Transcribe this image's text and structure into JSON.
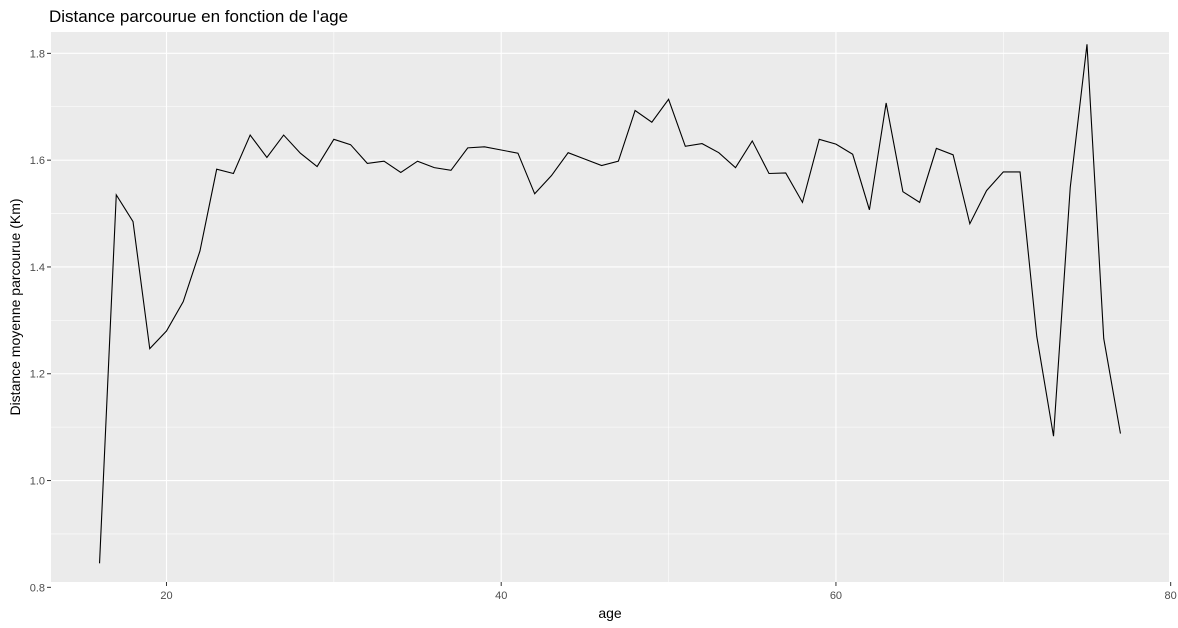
{
  "chart_data": {
    "type": "line",
    "title": "Distance parcourue en fonction de l'age",
    "xlabel": "age",
    "ylabel": "Distance moyenne parcourue (Km)",
    "xlim": [
      13.1,
      79.9
    ],
    "ylim": [
      0.81,
      1.84
    ],
    "x_ticks": [
      20,
      40,
      60,
      80
    ],
    "y_ticks": [
      0.8,
      1.0,
      1.2,
      1.4,
      1.6,
      1.8
    ],
    "x_tick_labels": [
      "20",
      "40",
      "60",
      "80"
    ],
    "y_tick_labels": [
      "0.8",
      "1.0",
      "1.2",
      "1.4",
      "1.6",
      "1.8"
    ],
    "grid": true,
    "background_color": "#ebebeb",
    "line_color": "#000000",
    "series": [
      {
        "x": [
          16,
          17,
          18,
          19,
          20,
          21,
          22,
          23,
          24,
          25,
          26,
          27,
          28,
          29,
          30,
          31,
          32,
          33,
          34,
          35,
          36,
          37,
          38,
          39,
          40,
          41,
          42,
          43,
          44,
          45,
          46,
          47,
          48,
          49,
          50,
          51,
          52,
          53,
          54,
          55,
          56,
          57,
          58,
          59,
          60,
          61,
          62,
          63,
          64,
          65,
          66,
          67,
          68,
          69,
          70,
          71,
          72,
          73,
          74,
          75,
          76,
          77
        ],
        "y": [
          0.845,
          1.535,
          1.485,
          1.247,
          1.28,
          1.335,
          1.43,
          1.583,
          1.575,
          1.647,
          1.605,
          1.647,
          1.613,
          1.588,
          1.639,
          1.629,
          1.594,
          1.598,
          1.577,
          1.598,
          1.586,
          1.581,
          1.623,
          1.625,
          1.619,
          1.613,
          1.537,
          1.571,
          1.614,
          1.602,
          1.59,
          1.598,
          1.693,
          1.671,
          1.714,
          1.626,
          1.631,
          1.614,
          1.586,
          1.636,
          1.575,
          1.576,
          1.521,
          1.639,
          1.63,
          1.611,
          1.507,
          1.707,
          1.541,
          1.521,
          1.622,
          1.61,
          1.481,
          1.543,
          1.578,
          1.578,
          1.27,
          1.083,
          1.549,
          1.817,
          1.266,
          1.088
        ]
      }
    ]
  }
}
